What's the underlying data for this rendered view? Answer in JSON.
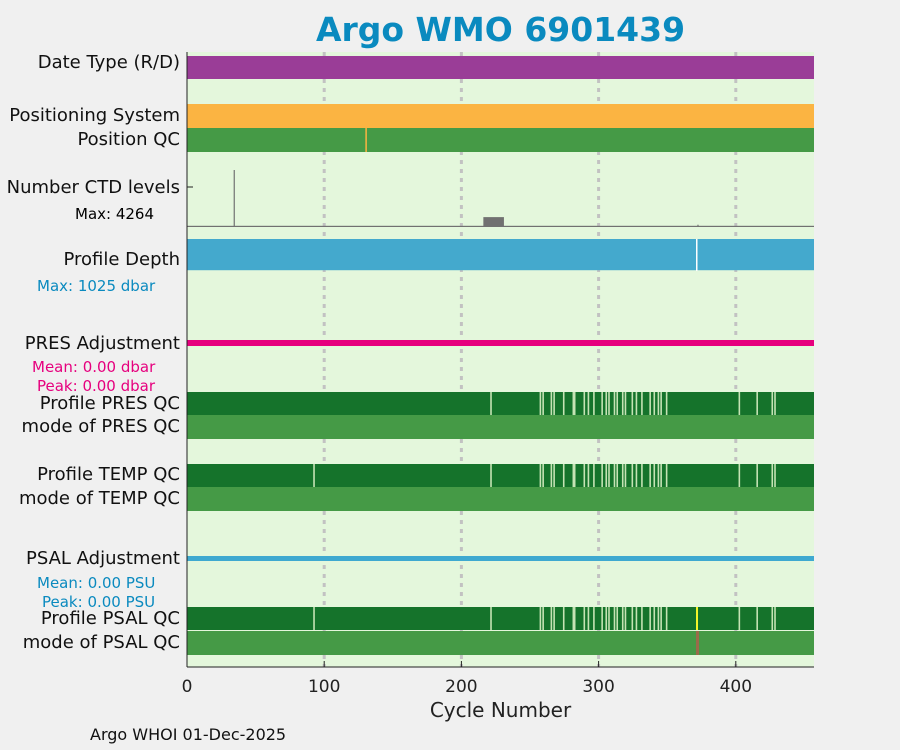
{
  "chart_data": {
    "type": "timeline",
    "title": "Argo WMO 6901439",
    "xlabel": "Cycle Number",
    "xlim": [
      0,
      457
    ],
    "xticks": [
      0,
      100,
      200,
      300,
      400
    ],
    "footer": "Argo WHOI 01-Dec-2025",
    "colors": {
      "background": "#e4f7dc",
      "grid": "#c2c2c2",
      "data_type": "#9a3d97",
      "positioning": "#fbb442",
      "qc_good": "#459a46",
      "qc_profile_A": "#15732b",
      "qc_gap": "#c5e3b4",
      "qc_flag": "#9b6b4a",
      "qc_probably_good": "#f5f52a",
      "ctd_levels": "#717171",
      "profile_depth": "#44a9cd",
      "pres_adjustment": "#e6007e",
      "psal_adjustment": "#3ea9d0",
      "title": "#0a8abf"
    },
    "rows": {
      "data_type": {
        "label": "Date Type (R/D)"
      },
      "positioning": {
        "label": "Positioning System"
      },
      "position_qc": {
        "label": "Position QC",
        "flag_cycles": [
          130
        ]
      },
      "ctd_levels": {
        "label": "Number CTD levels",
        "max_label": "Max: 4264",
        "max_value": 4264,
        "baseline_value": 90,
        "spikes": [
          {
            "cycle": 34,
            "value": 4264
          },
          {
            "cycle": 372,
            "value": 170
          }
        ],
        "block": {
          "from": 216,
          "to": 231,
          "value": 740
        }
      },
      "profile_depth": {
        "label": "Profile Depth",
        "max_label": "Max: 1025 dbar",
        "max_value": 1025,
        "typical_depth": 1000,
        "deep_spike_cycle": 371
      },
      "pres_adjustment": {
        "label": "PRES Adjustment",
        "mean_label": "Mean: 0.00 dbar",
        "peak_label": "Peak: 0.00 dbar",
        "mean": 0.0,
        "peak": 0.0
      },
      "profile_pres_qc": {
        "label": "Profile PRES QC",
        "gap_cycles": [
          221,
          257,
          259,
          265,
          267,
          274,
          281,
          282,
          289,
          292,
          296,
          302,
          305,
          307,
          311,
          313,
          317,
          319,
          324,
          327,
          331,
          337,
          340,
          343,
          345,
          349,
          402,
          415,
          426,
          428
        ]
      },
      "mode_pres_qc": {
        "label": "mode of PRES QC"
      },
      "profile_temp_qc": {
        "label": "Profile TEMP QC",
        "gap_cycles": [
          92,
          221,
          257,
          259,
          265,
          267,
          274,
          281,
          282,
          289,
          292,
          296,
          302,
          305,
          307,
          311,
          313,
          317,
          319,
          324,
          327,
          331,
          337,
          340,
          343,
          345,
          349,
          402,
          415,
          426,
          428
        ]
      },
      "mode_temp_qc": {
        "label": "mode of TEMP QC"
      },
      "psal_adjustment": {
        "label": "PSAL Adjustment",
        "mean_label": "Mean: 0.00 PSU",
        "peak_label": "Peak: 0.00 PSU",
        "mean": 0.0,
        "peak": 0.0
      },
      "profile_psal_qc": {
        "label": "Profile PSAL QC",
        "gap_cycles": [
          92,
          221,
          257,
          259,
          265,
          267,
          274,
          281,
          282,
          289,
          292,
          296,
          302,
          305,
          307,
          311,
          313,
          317,
          319,
          324,
          327,
          331,
          337,
          340,
          343,
          345,
          349,
          402,
          415,
          426,
          428
        ],
        "probably_good_cycles": [
          371
        ]
      },
      "mode_psal_qc": {
        "label": "mode of PSAL QC",
        "flag_cycles": [
          371
        ]
      }
    }
  }
}
